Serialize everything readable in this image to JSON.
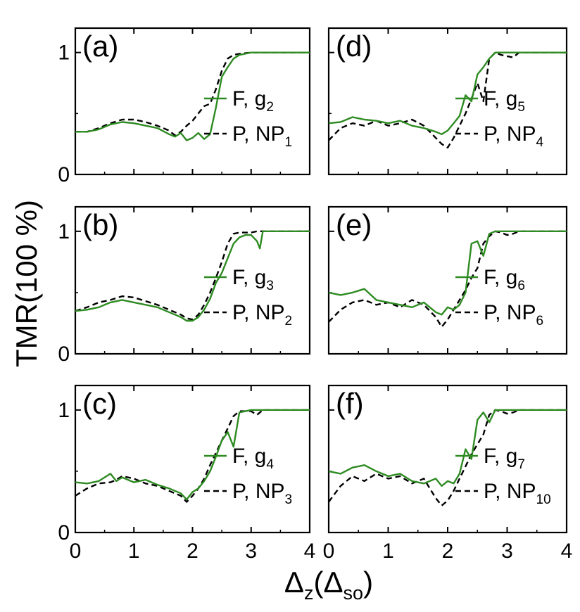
{
  "figure": {
    "ylabel": "TMR(100 %)",
    "xlabel": {
      "main": "Δ",
      "sub1": "z",
      "open": "(Δ",
      "sub2": "so",
      "close": ")"
    }
  },
  "colors": {
    "green": "#2e8b22",
    "black": "#000000"
  },
  "x_ticks": [
    "0",
    "1",
    "2",
    "3",
    "4"
  ],
  "y_ticks": [
    "0",
    "1"
  ],
  "chart_data": [
    {
      "type": "line",
      "panel": "(a)",
      "xlim": [
        0,
        4
      ],
      "ylim": [
        0,
        1.2
      ],
      "x": [
        0,
        0.2,
        0.4,
        0.6,
        0.8,
        1.0,
        1.2,
        1.4,
        1.6,
        1.7,
        1.8,
        1.9,
        2.0,
        2.1,
        2.2,
        2.3,
        2.4,
        2.5,
        2.6,
        2.7,
        2.8,
        3.0,
        3.5,
        4.0
      ],
      "series": [
        {
          "name": "F, g2",
          "legend": {
            "label": "F, g",
            "sub": "2"
          },
          "style": "solid",
          "color": "#2e8b22",
          "values": [
            0.35,
            0.35,
            0.37,
            0.41,
            0.43,
            0.42,
            0.4,
            0.38,
            0.33,
            0.31,
            0.34,
            0.28,
            0.3,
            0.34,
            0.29,
            0.33,
            0.55,
            0.8,
            0.88,
            0.95,
            0.98,
            1.0,
            1.0,
            1.0
          ]
        },
        {
          "name": "P, NP1",
          "legend": {
            "label": "P, NP",
            "sub": "1"
          },
          "style": "dashed",
          "color": "#000000",
          "values": [
            0.35,
            0.35,
            0.38,
            0.42,
            0.45,
            0.45,
            0.43,
            0.4,
            0.36,
            0.32,
            0.35,
            0.4,
            0.44,
            0.5,
            0.56,
            0.58,
            0.7,
            0.85,
            0.95,
            0.98,
            0.99,
            1.0,
            1.0,
            1.0
          ]
        }
      ]
    },
    {
      "type": "line",
      "panel": "(b)",
      "xlim": [
        0,
        4
      ],
      "ylim": [
        0,
        1.2
      ],
      "x": [
        0,
        0.2,
        0.4,
        0.6,
        0.8,
        1.0,
        1.2,
        1.4,
        1.6,
        1.8,
        1.9,
        2.0,
        2.1,
        2.2,
        2.3,
        2.4,
        2.5,
        2.6,
        2.7,
        2.8,
        2.9,
        3.0,
        3.1,
        3.15,
        3.2,
        3.5,
        4.0
      ],
      "series": [
        {
          "name": "F, g3",
          "legend": {
            "label": "F, g",
            "sub": "3"
          },
          "style": "solid",
          "color": "#2e8b22",
          "values": [
            0.35,
            0.36,
            0.38,
            0.42,
            0.44,
            0.42,
            0.4,
            0.38,
            0.34,
            0.3,
            0.27,
            0.27,
            0.3,
            0.36,
            0.45,
            0.58,
            0.66,
            0.78,
            0.9,
            0.95,
            0.97,
            0.97,
            0.92,
            0.86,
            1.0,
            1.0,
            1.0
          ]
        },
        {
          "name": "P, NP2",
          "legend": {
            "label": "P, NP",
            "sub": "2"
          },
          "style": "dashed",
          "color": "#000000",
          "values": [
            0.35,
            0.38,
            0.42,
            0.44,
            0.47,
            0.46,
            0.43,
            0.4,
            0.36,
            0.32,
            0.29,
            0.28,
            0.32,
            0.4,
            0.5,
            0.62,
            0.75,
            0.9,
            0.98,
            0.99,
            0.99,
            0.99,
            1.0,
            1.0,
            1.0,
            1.0,
            1.0
          ]
        }
      ]
    },
    {
      "type": "line",
      "panel": "(c)",
      "xlim": [
        0,
        4
      ],
      "ylim": [
        0,
        1.2
      ],
      "x": [
        0,
        0.2,
        0.4,
        0.6,
        0.7,
        0.8,
        1.0,
        1.2,
        1.4,
        1.6,
        1.8,
        1.9,
        2.0,
        2.1,
        2.2,
        2.3,
        2.4,
        2.5,
        2.6,
        2.7,
        2.8,
        3.0,
        3.1,
        3.2,
        3.5,
        4.0
      ],
      "series": [
        {
          "name": "F, g4",
          "legend": {
            "label": "F, g",
            "sub": "4"
          },
          "style": "solid",
          "color": "#2e8b22",
          "values": [
            0.41,
            0.4,
            0.42,
            0.48,
            0.42,
            0.45,
            0.41,
            0.43,
            0.39,
            0.36,
            0.32,
            0.27,
            0.33,
            0.36,
            0.42,
            0.5,
            0.62,
            0.75,
            0.82,
            0.7,
            0.98,
            1.0,
            1.0,
            1.0,
            1.0,
            1.0
          ]
        },
        {
          "name": "P, NP3",
          "legend": {
            "label": "P, NP",
            "sub": "3"
          },
          "style": "dashed",
          "color": "#000000",
          "values": [
            0.3,
            0.36,
            0.4,
            0.41,
            0.43,
            0.46,
            0.44,
            0.4,
            0.38,
            0.34,
            0.3,
            0.25,
            0.3,
            0.36,
            0.44,
            0.55,
            0.65,
            0.75,
            0.85,
            0.95,
            0.99,
            0.99,
            0.96,
            1.0,
            1.0,
            1.0
          ]
        }
      ]
    },
    {
      "type": "line",
      "panel": "(d)",
      "xlim": [
        0,
        4
      ],
      "ylim": [
        0,
        1.2
      ],
      "x": [
        0,
        0.2,
        0.4,
        0.6,
        0.8,
        1.0,
        1.2,
        1.4,
        1.6,
        1.8,
        1.9,
        2.0,
        2.1,
        2.2,
        2.3,
        2.4,
        2.5,
        2.6,
        2.7,
        2.8,
        2.9,
        3.0,
        3.1,
        3.2,
        3.5,
        4.0
      ],
      "series": [
        {
          "name": "F, g5",
          "legend": {
            "label": "F, g",
            "sub": "5"
          },
          "style": "solid",
          "color": "#2e8b22",
          "values": [
            0.42,
            0.43,
            0.47,
            0.45,
            0.44,
            0.42,
            0.44,
            0.4,
            0.38,
            0.35,
            0.33,
            0.36,
            0.42,
            0.48,
            0.65,
            0.6,
            0.82,
            0.88,
            0.95,
            1.0,
            1.0,
            1.0,
            1.0,
            1.0,
            1.0,
            1.0
          ]
        },
        {
          "name": "P, NP4",
          "legend": {
            "label": "P, NP",
            "sub": "4"
          },
          "style": "dashed",
          "color": "#000000",
          "values": [
            0.28,
            0.38,
            0.42,
            0.4,
            0.44,
            0.4,
            0.42,
            0.45,
            0.4,
            0.3,
            0.25,
            0.22,
            0.3,
            0.4,
            0.5,
            0.62,
            0.75,
            0.6,
            0.95,
            1.0,
            0.98,
            0.97,
            0.96,
            1.0,
            1.0,
            1.0
          ]
        }
      ]
    },
    {
      "type": "line",
      "panel": "(e)",
      "xlim": [
        0,
        4
      ],
      "ylim": [
        0,
        1.2
      ],
      "x": [
        0,
        0.2,
        0.4,
        0.6,
        0.8,
        1.0,
        1.2,
        1.4,
        1.6,
        1.8,
        1.9,
        2.0,
        2.1,
        2.2,
        2.3,
        2.4,
        2.5,
        2.6,
        2.7,
        2.8,
        2.9,
        3.0,
        3.1,
        3.2,
        3.5,
        4.0
      ],
      "series": [
        {
          "name": "F, g6",
          "legend": {
            "label": "F, g",
            "sub": "6"
          },
          "style": "solid",
          "color": "#2e8b22",
          "values": [
            0.5,
            0.48,
            0.5,
            0.53,
            0.44,
            0.42,
            0.4,
            0.38,
            0.42,
            0.34,
            0.32,
            0.38,
            0.36,
            0.4,
            0.5,
            0.9,
            0.92,
            0.8,
            0.98,
            1.0,
            1.0,
            1.0,
            1.0,
            1.0,
            1.0,
            1.0
          ]
        },
        {
          "name": "P, NP6",
          "legend": {
            "label": "P, NP",
            "sub": "6"
          },
          "style": "dashed",
          "color": "#000000",
          "values": [
            0.26,
            0.36,
            0.42,
            0.44,
            0.4,
            0.42,
            0.38,
            0.44,
            0.4,
            0.3,
            0.22,
            0.28,
            0.36,
            0.44,
            0.52,
            0.62,
            0.7,
            0.9,
            0.96,
            1.0,
            0.99,
            0.97,
            0.98,
            1.0,
            1.0,
            1.0
          ]
        }
      ]
    },
    {
      "type": "line",
      "panel": "(f)",
      "xlim": [
        0,
        4
      ],
      "ylim": [
        0,
        1.2
      ],
      "x": [
        0,
        0.2,
        0.4,
        0.6,
        0.8,
        1.0,
        1.2,
        1.4,
        1.6,
        1.8,
        1.9,
        2.0,
        2.1,
        2.2,
        2.3,
        2.4,
        2.5,
        2.6,
        2.7,
        2.8,
        2.9,
        3.0,
        3.1,
        3.2,
        3.5,
        4.0
      ],
      "series": [
        {
          "name": "F, g7",
          "legend": {
            "label": "F, g",
            "sub": "7"
          },
          "style": "solid",
          "color": "#2e8b22",
          "values": [
            0.5,
            0.48,
            0.53,
            0.55,
            0.5,
            0.46,
            0.48,
            0.42,
            0.4,
            0.44,
            0.38,
            0.42,
            0.4,
            0.48,
            0.68,
            0.6,
            0.92,
            0.98,
            0.9,
            1.0,
            1.0,
            1.0,
            1.0,
            1.0,
            1.0,
            1.0
          ]
        },
        {
          "name": "P, NP10",
          "legend": {
            "label": "P, NP",
            "sub": "10"
          },
          "style": "dashed",
          "color": "#000000",
          "values": [
            0.25,
            0.38,
            0.46,
            0.42,
            0.48,
            0.44,
            0.46,
            0.4,
            0.44,
            0.28,
            0.22,
            0.26,
            0.34,
            0.44,
            0.54,
            0.64,
            0.72,
            0.8,
            0.96,
            1.0,
            0.99,
            0.97,
            0.98,
            1.0,
            1.0,
            1.0
          ]
        }
      ]
    }
  ]
}
